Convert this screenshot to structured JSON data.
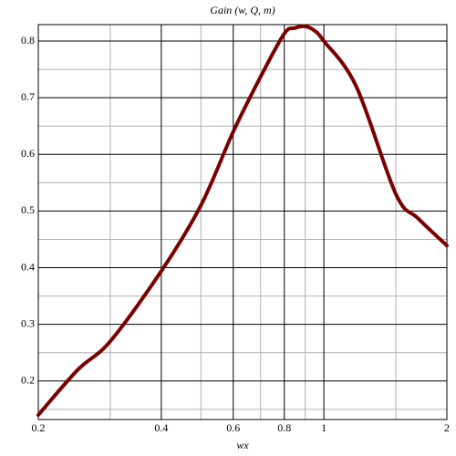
{
  "chart_data": {
    "type": "line",
    "title": "Gain (w, Q, m)",
    "x_label": "wx",
    "log_x": true,
    "grid": true,
    "x": [
      0.2,
      0.25,
      0.3,
      0.4,
      0.5,
      0.6,
      0.7,
      0.8,
      0.85,
      0.9,
      0.95,
      1,
      1.2,
      1.5,
      1.7,
      2
    ],
    "series": [
      {
        "name": "Gain",
        "color": "#7a0000",
        "values": [
          0.14,
          0.22,
          0.27,
          0.394,
          0.51,
          0.64,
          0.737,
          0.813,
          0.823,
          0.826,
          0.818,
          0.8,
          0.72,
          0.53,
          0.487,
          0.439
        ]
      }
    ],
    "xlim": [
      0.2,
      2
    ],
    "ylim": [
      0.132,
      0.829
    ],
    "xticks": [
      0.2,
      0.4,
      0.6,
      0.8,
      1,
      2
    ],
    "yticks": [
      0.2,
      0.3,
      0.4,
      0.5,
      0.6,
      0.7,
      0.8
    ],
    "xminor": [
      0.3,
      0.5,
      0.7,
      0.9,
      1.5
    ],
    "yminor": [
      0.15,
      0.25,
      0.35,
      0.45,
      0.55,
      0.65,
      0.75
    ]
  }
}
